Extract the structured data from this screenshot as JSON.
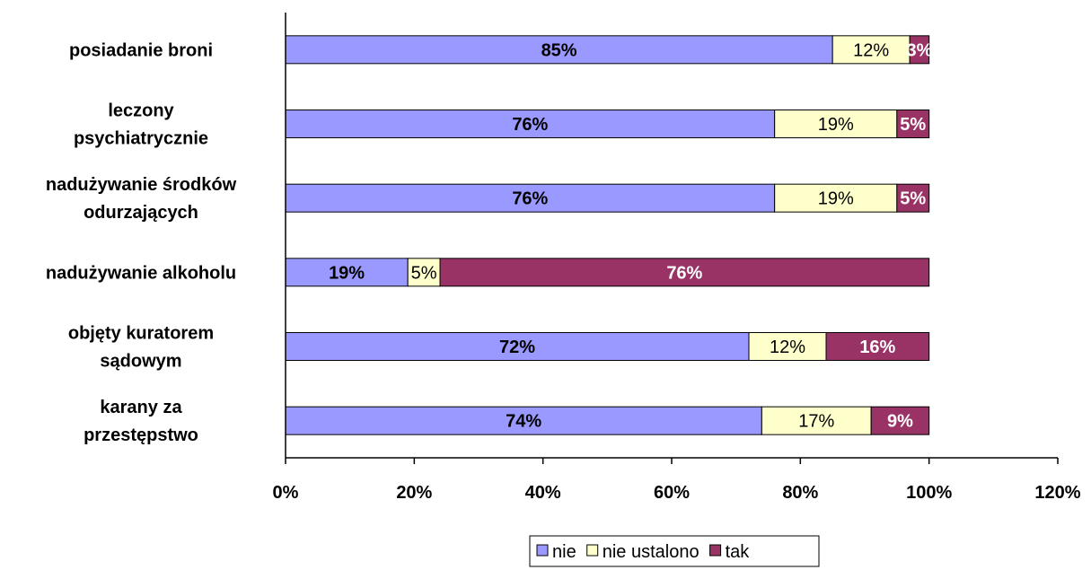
{
  "chart_data": {
    "type": "bar",
    "orientation": "horizontal",
    "stacked": true,
    "categories": [
      [
        "posiadanie broni"
      ],
      [
        "leczony",
        "psychiatrycznie"
      ],
      [
        "nadużywanie środków",
        "odurzających"
      ],
      [
        "nadużywanie alkoholu"
      ],
      [
        "objęty kuratorem",
        "sądowym"
      ],
      [
        "karany za",
        "przestępstwo"
      ]
    ],
    "series": [
      {
        "name": "nie",
        "color": "#9999ff",
        "label_color": "#000000",
        "label_bold": true,
        "values": [
          85,
          76,
          76,
          19,
          72,
          74
        ],
        "labels": [
          "85%",
          "76%",
          "76%",
          "19%",
          "72%",
          "74%"
        ]
      },
      {
        "name": "nie ustalono",
        "color": "#ffffcc",
        "label_color": "#000000",
        "label_bold": false,
        "values": [
          12,
          19,
          19,
          5,
          12,
          17
        ],
        "labels": [
          "12%",
          "19%",
          "19%",
          "5%",
          "12%",
          "17%"
        ]
      },
      {
        "name": "tak",
        "color": "#993366",
        "label_color": "#ffffff",
        "label_bold": true,
        "values": [
          3,
          5,
          5,
          76,
          16,
          9
        ],
        "labels": [
          "3%",
          "5%",
          "5%",
          "76%",
          "16%",
          "9%"
        ]
      }
    ],
    "xlim": [
      0,
      120
    ],
    "xticks": [
      0,
      20,
      40,
      60,
      80,
      100,
      120
    ],
    "xtick_labels": [
      "0%",
      "20%",
      "40%",
      "60%",
      "80%",
      "100%",
      "120%"
    ],
    "grid": false,
    "legend_position": "bottom"
  }
}
